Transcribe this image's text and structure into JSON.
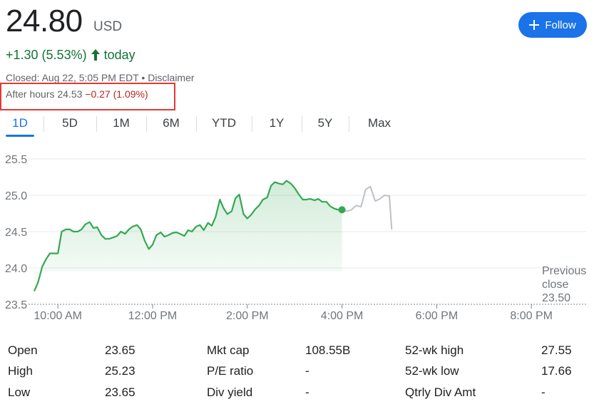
{
  "quote": {
    "price": "24.80",
    "currency": "USD",
    "change": "+1.30 (5.53%)",
    "change_period": "today",
    "closed_text": "Closed: Aug 22, 5:05 PM EDT",
    "separator": "•",
    "disclaimer": "Disclaimer",
    "after_hours_label": "After hours 24.53",
    "after_hours_change": "−0.27 (1.09%)",
    "follow_label": "Follow"
  },
  "colors": {
    "up": "#137333",
    "line": "#34a853",
    "after_hours_line": "#bdc1c6",
    "down": "#c5221f",
    "accent": "#1a73e8"
  },
  "tabs": [
    "1D",
    "5D",
    "1M",
    "6M",
    "YTD",
    "1Y",
    "5Y",
    "Max"
  ],
  "active_tab": "1D",
  "chart_data": {
    "type": "line",
    "ylim": [
      23.5,
      25.5
    ],
    "yticks": [
      "23.5",
      "24.0",
      "24.5",
      "25.0",
      "25.5"
    ],
    "xticks": [
      "10:00 AM",
      "12:00 PM",
      "2:00 PM",
      "4:00 PM",
      "6:00 PM",
      "8:00 PM"
    ],
    "xlim_hours": [
      9.5,
      20.0
    ],
    "previous_close": 23.5,
    "previous_close_label": [
      "Previous",
      "close",
      "23.50"
    ],
    "series": [
      {
        "session": "regular",
        "x": [
          9.5,
          9.58,
          9.67,
          9.75,
          9.83,
          9.92,
          10.0,
          10.08,
          10.17,
          10.25,
          10.33,
          10.42,
          10.5,
          10.58,
          10.67,
          10.75,
          10.83,
          10.92,
          11.0,
          11.08,
          11.17,
          11.25,
          11.33,
          11.42,
          11.5,
          11.58,
          11.67,
          11.75,
          11.83,
          11.92,
          12.0,
          12.08,
          12.17,
          12.25,
          12.33,
          12.42,
          12.5,
          12.58,
          12.67,
          12.75,
          12.83,
          12.92,
          13.0,
          13.08,
          13.17,
          13.25,
          13.33,
          13.42,
          13.5,
          13.58,
          13.67,
          13.75,
          13.83,
          13.92,
          14.0,
          14.08,
          14.17,
          14.25,
          14.33,
          14.42,
          14.5,
          14.58,
          14.67,
          14.75,
          14.83,
          14.92,
          15.0,
          15.08,
          15.17,
          15.25,
          15.33,
          15.42,
          15.5,
          15.58,
          15.67,
          15.75,
          15.83,
          15.92,
          16.0
        ],
        "y": [
          23.68,
          23.8,
          24.02,
          24.12,
          24.2,
          24.2,
          24.2,
          24.5,
          24.53,
          24.53,
          24.5,
          24.5,
          24.53,
          24.6,
          24.63,
          24.55,
          24.56,
          24.45,
          24.4,
          24.4,
          24.42,
          24.44,
          24.5,
          24.47,
          24.53,
          24.57,
          24.59,
          24.53,
          24.38,
          24.26,
          24.32,
          24.45,
          24.49,
          24.43,
          24.45,
          24.48,
          24.49,
          24.47,
          24.44,
          24.52,
          24.5,
          24.57,
          24.59,
          24.52,
          24.62,
          24.58,
          24.7,
          24.94,
          24.82,
          24.74,
          24.78,
          24.96,
          25.01,
          24.74,
          24.68,
          24.73,
          24.81,
          24.86,
          24.94,
          24.97,
          25.13,
          25.18,
          25.16,
          25.15,
          25.2,
          25.16,
          25.1,
          25.02,
          24.94,
          24.94,
          24.95,
          24.93,
          24.95,
          24.91,
          24.91,
          24.85,
          24.82,
          24.8,
          24.8
        ]
      },
      {
        "session": "after-hours",
        "x": [
          16.0,
          16.1,
          16.2,
          16.3,
          16.4,
          16.5,
          16.6,
          16.7,
          16.8,
          16.9,
          17.0,
          17.05
        ],
        "y": [
          24.8,
          24.78,
          24.8,
          24.86,
          24.84,
          25.08,
          25.12,
          24.92,
          24.95,
          25.0,
          24.99,
          24.53
        ]
      }
    ]
  },
  "stats": [
    {
      "label": "Open",
      "value": "23.65"
    },
    {
      "label": "High",
      "value": "25.23"
    },
    {
      "label": "Low",
      "value": "23.65"
    },
    {
      "label": "Mkt cap",
      "value": "108.55B"
    },
    {
      "label": "P/E ratio",
      "value": "-"
    },
    {
      "label": "Div yield",
      "value": "-"
    },
    {
      "label": "52-wk high",
      "value": "27.55"
    },
    {
      "label": "52-wk low",
      "value": "17.66"
    },
    {
      "label": "Qtrly Div Amt",
      "value": "-"
    }
  ]
}
